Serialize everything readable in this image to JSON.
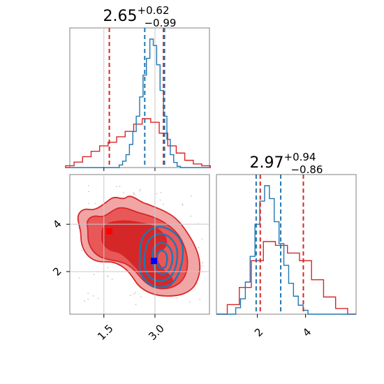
{
  "chart_data": [
    {
      "type": "histogram",
      "panel": "top-left marginal",
      "title": {
        "value": "2.65",
        "plus": "+0.62",
        "minus": "−0.99"
      },
      "xlim": [
        0.5,
        4.6
      ],
      "series": [
        {
          "name": "",
          "color": "#1f77b4",
          "x": [
            2.0,
            2.1,
            2.2,
            2.3,
            2.4,
            2.5,
            2.6,
            2.7,
            2.8,
            2.9,
            3.0,
            3.1,
            3.2,
            3.3,
            3.4,
            3.5,
            3.6,
            3.7
          ],
          "values": [
            2,
            5,
            10,
            18,
            28,
            40,
            55,
            72,
            85,
            100,
            95,
            80,
            60,
            40,
            22,
            10,
            4,
            1
          ],
          "quantile_lines": [
            2.7,
            3.28
          ]
        },
        {
          "name": "",
          "color": "#d62728",
          "x": [
            0.5,
            0.75,
            1.0,
            1.25,
            1.5,
            1.75,
            2.0,
            2.25,
            2.5,
            2.75,
            3.0,
            3.25,
            3.5,
            3.75,
            4.0,
            4.25,
            4.5
          ],
          "values": [
            1,
            3,
            6,
            9,
            12,
            14,
            17,
            20,
            24,
            27,
            25,
            19,
            12,
            8,
            4,
            2,
            1
          ],
          "quantile_lines": [
            1.66,
            3.25
          ]
        }
      ]
    },
    {
      "type": "contour",
      "panel": "lower-left 2D",
      "xlim": [
        0.5,
        4.6
      ],
      "ylim": [
        0.2,
        6.1
      ],
      "x_ticks": [
        "1.5",
        "3.0"
      ],
      "y_ticks": [
        "2",
        "4"
      ],
      "grid": true,
      "truth_markers": [
        {
          "x": 1.66,
          "y": 3.7,
          "color": "#ff0000"
        },
        {
          "x": 2.97,
          "y": 2.45,
          "color": "#0000ff"
        }
      ],
      "series": [
        {
          "name": "",
          "color": "#d62728",
          "style": "filled contours"
        },
        {
          "name": "",
          "color": "#1f77b4",
          "style": "contour lines"
        }
      ]
    },
    {
      "type": "histogram",
      "panel": "lower-right marginal",
      "title": {
        "value": "2.97",
        "plus": "+0.94",
        "minus": "−0.86"
      },
      "xlim": [
        0.3,
        6.1
      ],
      "x_ticks": [
        "2",
        "4"
      ],
      "series": [
        {
          "name": "",
          "color": "#1f77b4",
          "x": [
            1.2,
            1.4,
            1.6,
            1.8,
            2.0,
            2.2,
            2.4,
            2.6,
            2.8,
            3.0,
            3.2,
            3.4,
            3.6,
            3.8,
            4.0
          ],
          "values": [
            5,
            12,
            25,
            45,
            70,
            88,
            100,
            90,
            72,
            55,
            38,
            24,
            14,
            7,
            3
          ],
          "quantile_lines": [
            1.95,
            2.97
          ]
        },
        {
          "name": "",
          "color": "#d62728",
          "x": [
            1.0,
            1.5,
            2.0,
            2.5,
            3.0,
            3.5,
            4.0,
            4.5,
            5.0,
            5.5
          ],
          "values": [
            5,
            14,
            28,
            38,
            36,
            32,
            28,
            18,
            9,
            3
          ],
          "quantile_lines": [
            2.12,
            3.91
          ]
        }
      ]
    }
  ]
}
